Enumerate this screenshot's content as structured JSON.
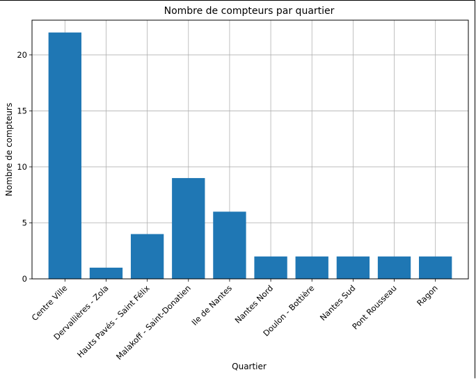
{
  "chart_data": {
    "type": "bar",
    "title": "Nombre de compteurs par quartier",
    "xlabel": "Quartier",
    "ylabel": "Nombre de compteurs",
    "categories": [
      "Centre Ville",
      "Dervallières - Zola",
      "Hauts Pavés - Saint Félix",
      "Malakoff - Saint-Donatien",
      "Ile de Nantes",
      "Nantes Nord",
      "Doulon - Bottière",
      "Nantes Sud",
      "Pont Rousseau",
      "Ragon"
    ],
    "values": [
      22,
      1,
      4,
      9,
      6,
      2,
      2,
      2,
      2,
      2
    ],
    "ylim": [
      0,
      23.1
    ],
    "yticks": [
      0,
      5,
      10,
      15,
      20
    ],
    "grid": true,
    "bar_color": "#1f77b4",
    "grid_color": "#b0b0b0"
  }
}
